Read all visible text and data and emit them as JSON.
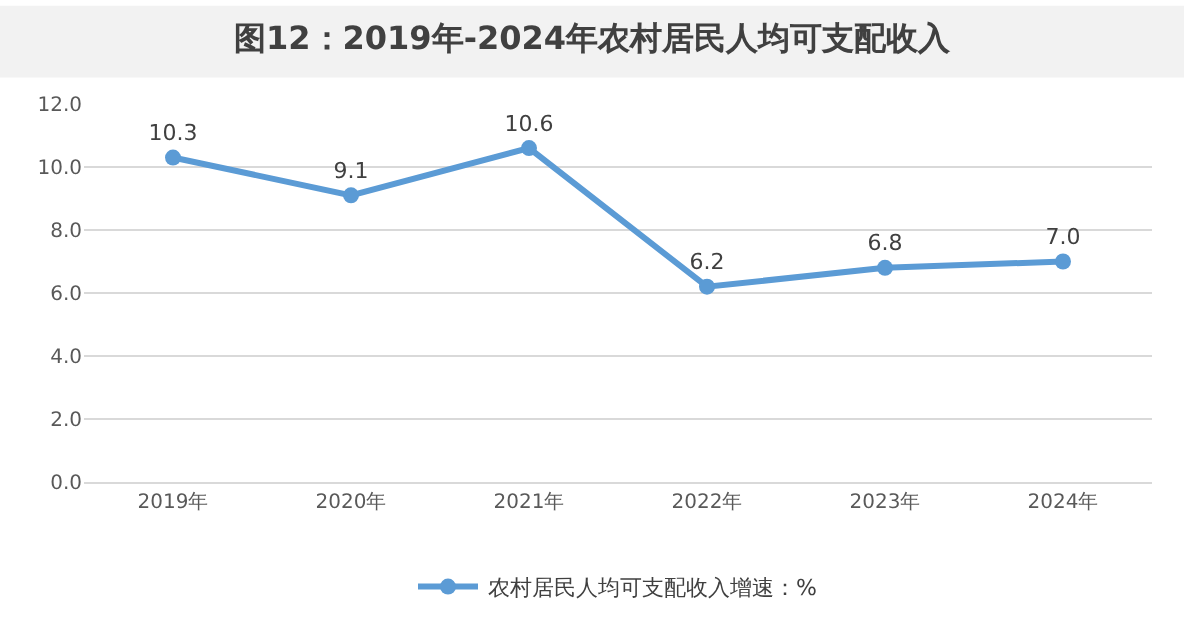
{
  "chart_data": {
    "type": "line",
    "title": "图12：2019年-2024年农村居民人均可支配收入",
    "categories": [
      "2019年",
      "2020年",
      "2021年",
      "2022年",
      "2023年",
      "2024年"
    ],
    "series": [
      {
        "name": "农村居民人均可支配收入增速：%",
        "color": "#5b9bd5",
        "values": [
          10.3,
          9.1,
          10.6,
          6.2,
          6.8,
          7.0
        ],
        "value_labels": [
          "10.3",
          "9.1",
          "10.6",
          "6.2",
          "6.8",
          "7.0"
        ]
      }
    ],
    "ylim": [
      0,
      12
    ],
    "yticks": [
      {
        "value": 0,
        "label": "0.0"
      },
      {
        "value": 2,
        "label": "2.0"
      },
      {
        "value": 4,
        "label": "4.0"
      },
      {
        "value": 6,
        "label": "6.0"
      },
      {
        "value": 8,
        "label": "8.0"
      },
      {
        "value": 10,
        "label": "10.0"
      },
      {
        "value": 12,
        "label": "12.0"
      }
    ],
    "grid": "y",
    "legend": "bottom",
    "marker": "circle",
    "line_style": "solid"
  }
}
